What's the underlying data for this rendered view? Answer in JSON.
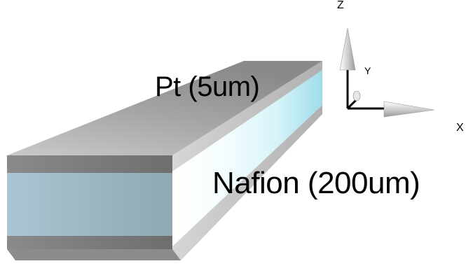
{
  "layers": {
    "top_label": "Pt (5um)",
    "middle_label": "Nafion (200um)"
  },
  "axes": {
    "x_label": "X",
    "y_label": "Y",
    "z_label": "Z"
  },
  "colors": {
    "pt_top_face": "#9a9a9a",
    "pt_front_face": "#7c7c7c",
    "nafion_front_face": "#9fb8c2",
    "side_face_light": "#e8f9fb",
    "side_face_cyan": "#bfeef6",
    "axis_arrow": "#c8c8c8",
    "axis_line": "#000000"
  }
}
